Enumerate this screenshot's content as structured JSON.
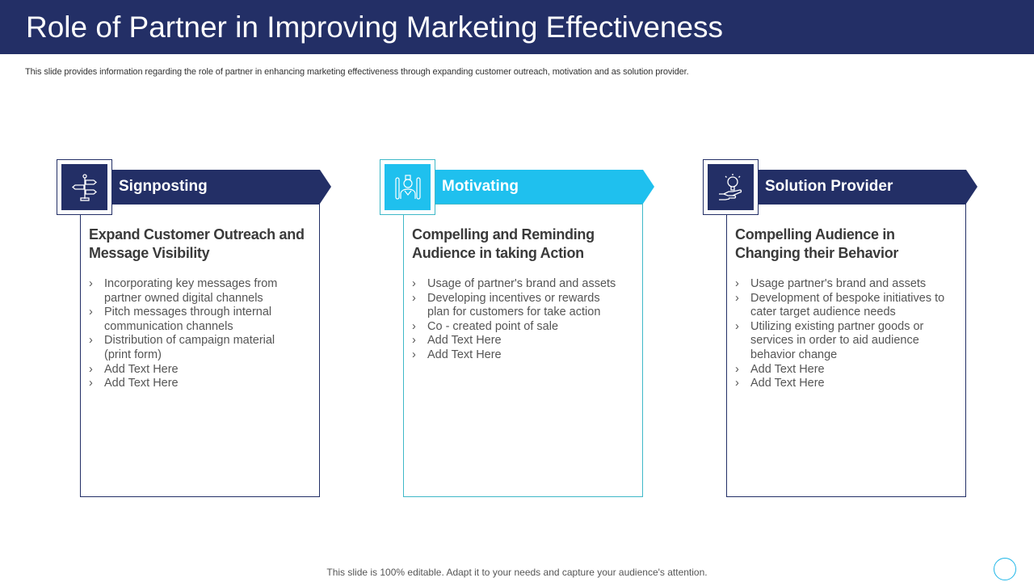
{
  "title": "Role of Partner in Improving Marketing Effectiveness",
  "subtitle": "This slide provides information regarding the role of partner in enhancing marketing effectiveness through expanding customer outreach, motivation and as solution provider.",
  "footer": "This slide is 100% editable. Adapt it to your needs and capture your audience's attention.",
  "colors": {
    "navy": "#232f66",
    "cyan": "#1fc0ee",
    "teal_border": "#3fb8c8"
  },
  "cards": [
    {
      "label": "Signposting",
      "icon": "signpost-icon",
      "heading": "Expand Customer Outreach and Message Visibility",
      "bullets": [
        "Incorporating key messages from partner owned digital channels",
        "Pitch messages through internal communication channels",
        "Distribution of campaign material (print form)",
        "Add Text Here",
        "Add Text Here"
      ]
    },
    {
      "label": "Motivating",
      "icon": "person-motivation-icon",
      "heading": "Compelling and Reminding Audience in taking Action",
      "bullets": [
        "Usage of partner's brand and assets",
        "Developing incentives or rewards plan for customers for take action",
        "Co - created point of sale",
        "Add Text Here",
        "Add Text Here"
      ]
    },
    {
      "label": "Solution Provider",
      "icon": "lightbulb-hand-icon",
      "heading": "Compelling Audience in Changing their Behavior",
      "bullets": [
        "Usage partner's brand and assets",
        "Development of bespoke initiatives to cater target audience needs",
        "Utilizing existing partner goods or services in order to aid audience behavior change",
        "Add Text Here",
        "Add Text Here"
      ]
    }
  ]
}
